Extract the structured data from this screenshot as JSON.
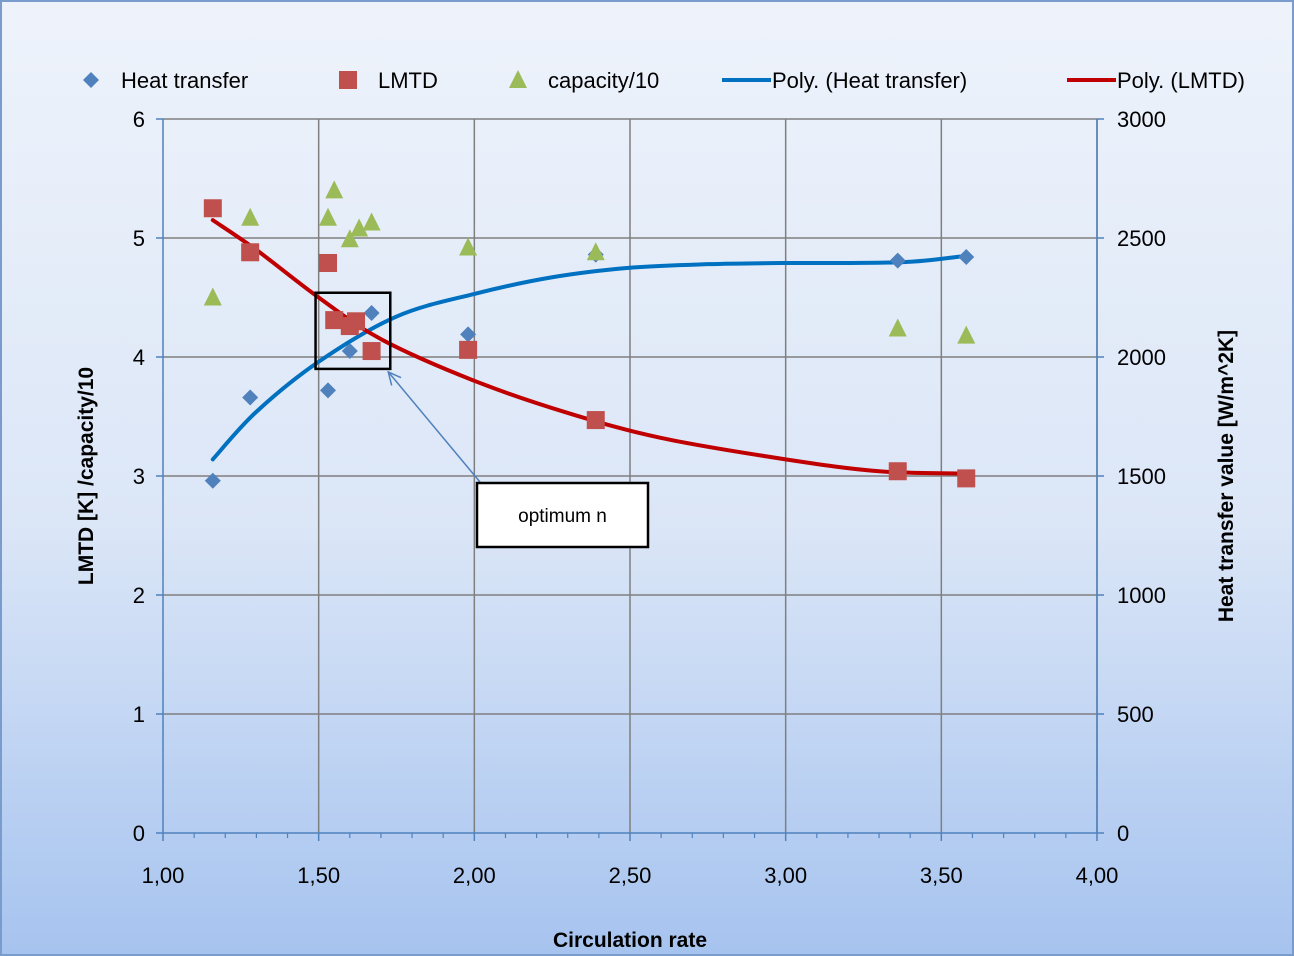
{
  "chart_data": {
    "type": "scatter",
    "xlabel": "Circulation rate",
    "ylabel_left": "LMTD [K] /capacity/10",
    "ylabel_right": "Heat transfer value [W/m^2K]",
    "xlim": [
      1.0,
      4.0
    ],
    "xticks": [
      "1,00",
      "1,50",
      "2,00",
      "2,50",
      "3,00",
      "3,50",
      "4,00"
    ],
    "ylim_left": [
      0,
      6
    ],
    "yticks_left": [
      "0",
      "1",
      "2",
      "3",
      "4",
      "5",
      "6"
    ],
    "ylim_right": [
      0,
      3000
    ],
    "yticks_right": [
      "0",
      "500",
      "1000",
      "1500",
      "2000",
      "2500",
      "3000"
    ],
    "grid": true,
    "legend_position": "top",
    "colors": {
      "heat_transfer": "#4F81BD",
      "lmtd": "#C0504D",
      "capacity": "#9BBB59",
      "poly_heat": "#0070C0",
      "poly_lmtd": "#C00000",
      "arrow": "#4F81BD"
    },
    "series": [
      {
        "name": "Heat transfer",
        "marker": "diamond",
        "axis": "right",
        "points": [
          [
            1.16,
            1480
          ],
          [
            1.28,
            1830
          ],
          [
            1.53,
            1860
          ],
          [
            1.6,
            2025
          ],
          [
            1.67,
            2185
          ],
          [
            1.98,
            2095
          ],
          [
            2.39,
            2430
          ],
          [
            3.36,
            2405
          ],
          [
            3.58,
            2420
          ]
        ]
      },
      {
        "name": "LMTD",
        "marker": "square",
        "axis": "left",
        "points": [
          [
            1.16,
            5.25
          ],
          [
            1.28,
            4.88
          ],
          [
            1.53,
            4.79
          ],
          [
            1.55,
            4.31
          ],
          [
            1.6,
            4.26
          ],
          [
            1.62,
            4.3
          ],
          [
            1.67,
            4.05
          ],
          [
            1.98,
            4.06
          ],
          [
            2.39,
            3.47
          ],
          [
            3.36,
            3.04
          ],
          [
            3.58,
            2.98
          ]
        ]
      },
      {
        "name": "capacity/10",
        "marker": "triangle",
        "axis": "left",
        "points": [
          [
            1.16,
            4.5
          ],
          [
            1.28,
            5.17
          ],
          [
            1.53,
            5.17
          ],
          [
            1.55,
            5.4
          ],
          [
            1.6,
            4.99
          ],
          [
            1.63,
            5.08
          ],
          [
            1.67,
            5.13
          ],
          [
            1.98,
            4.92
          ],
          [
            2.39,
            4.88
          ],
          [
            3.36,
            4.24
          ],
          [
            3.58,
            4.18
          ]
        ]
      },
      {
        "name": "Poly. (Heat transfer)",
        "type": "line",
        "axis": "right",
        "points": [
          [
            1.16,
            1570
          ],
          [
            1.3,
            1770
          ],
          [
            1.5,
            1980
          ],
          [
            1.75,
            2170
          ],
          [
            2.0,
            2265
          ],
          [
            2.25,
            2335
          ],
          [
            2.5,
            2375
          ],
          [
            2.75,
            2390
          ],
          [
            3.0,
            2395
          ],
          [
            3.2,
            2395
          ],
          [
            3.4,
            2400
          ],
          [
            3.58,
            2425
          ]
        ]
      },
      {
        "name": "Poly. (LMTD)",
        "type": "line",
        "axis": "left",
        "points": [
          [
            1.16,
            5.15
          ],
          [
            1.3,
            4.9
          ],
          [
            1.5,
            4.5
          ],
          [
            1.7,
            4.15
          ],
          [
            2.0,
            3.8
          ],
          [
            2.3,
            3.53
          ],
          [
            2.6,
            3.32
          ],
          [
            3.0,
            3.14
          ],
          [
            3.3,
            3.04
          ],
          [
            3.58,
            3.02
          ]
        ]
      }
    ],
    "annotation": {
      "text": "optimum n",
      "box": {
        "x0": 1.49,
        "x1": 1.73,
        "y0": 3.9,
        "y1": 4.54
      },
      "arrow_to": {
        "x": 1.73,
        "y": 3.9
      }
    }
  }
}
